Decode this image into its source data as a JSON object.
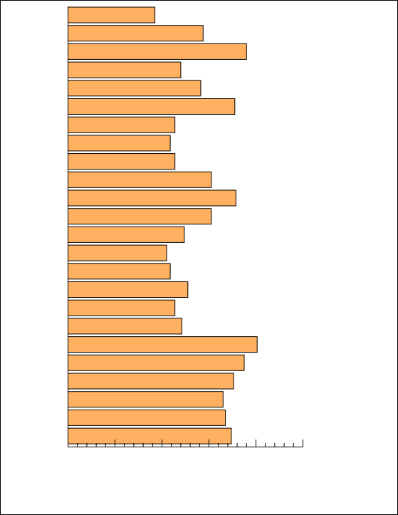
{
  "chart_data": {
    "type": "bar",
    "orientation": "horizontal",
    "categories": [
      "",
      "",
      "",
      "",
      "",
      "",
      "",
      "",
      "",
      "",
      "",
      "",
      "",
      "",
      "",
      "",
      "",
      "",
      "",
      "",
      "",
      "",
      "",
      ""
    ],
    "values": [
      37,
      57.5,
      76,
      48,
      56.5,
      71,
      45.5,
      43.5,
      45.5,
      61,
      71.5,
      61,
      49.5,
      42,
      43.5,
      51,
      45.5,
      48.5,
      80.5,
      75,
      70.5,
      66,
      67,
      69.5
    ],
    "xlim": [
      0,
      100
    ],
    "major_ticks": [
      0,
      20,
      40,
      60,
      80,
      100
    ],
    "minor_tick_step": 4,
    "title": "",
    "xlabel": "",
    "ylabel": "",
    "grid": false,
    "legend": "none",
    "bar_color": "#ffb060",
    "bar_edge_color": "#000000"
  }
}
